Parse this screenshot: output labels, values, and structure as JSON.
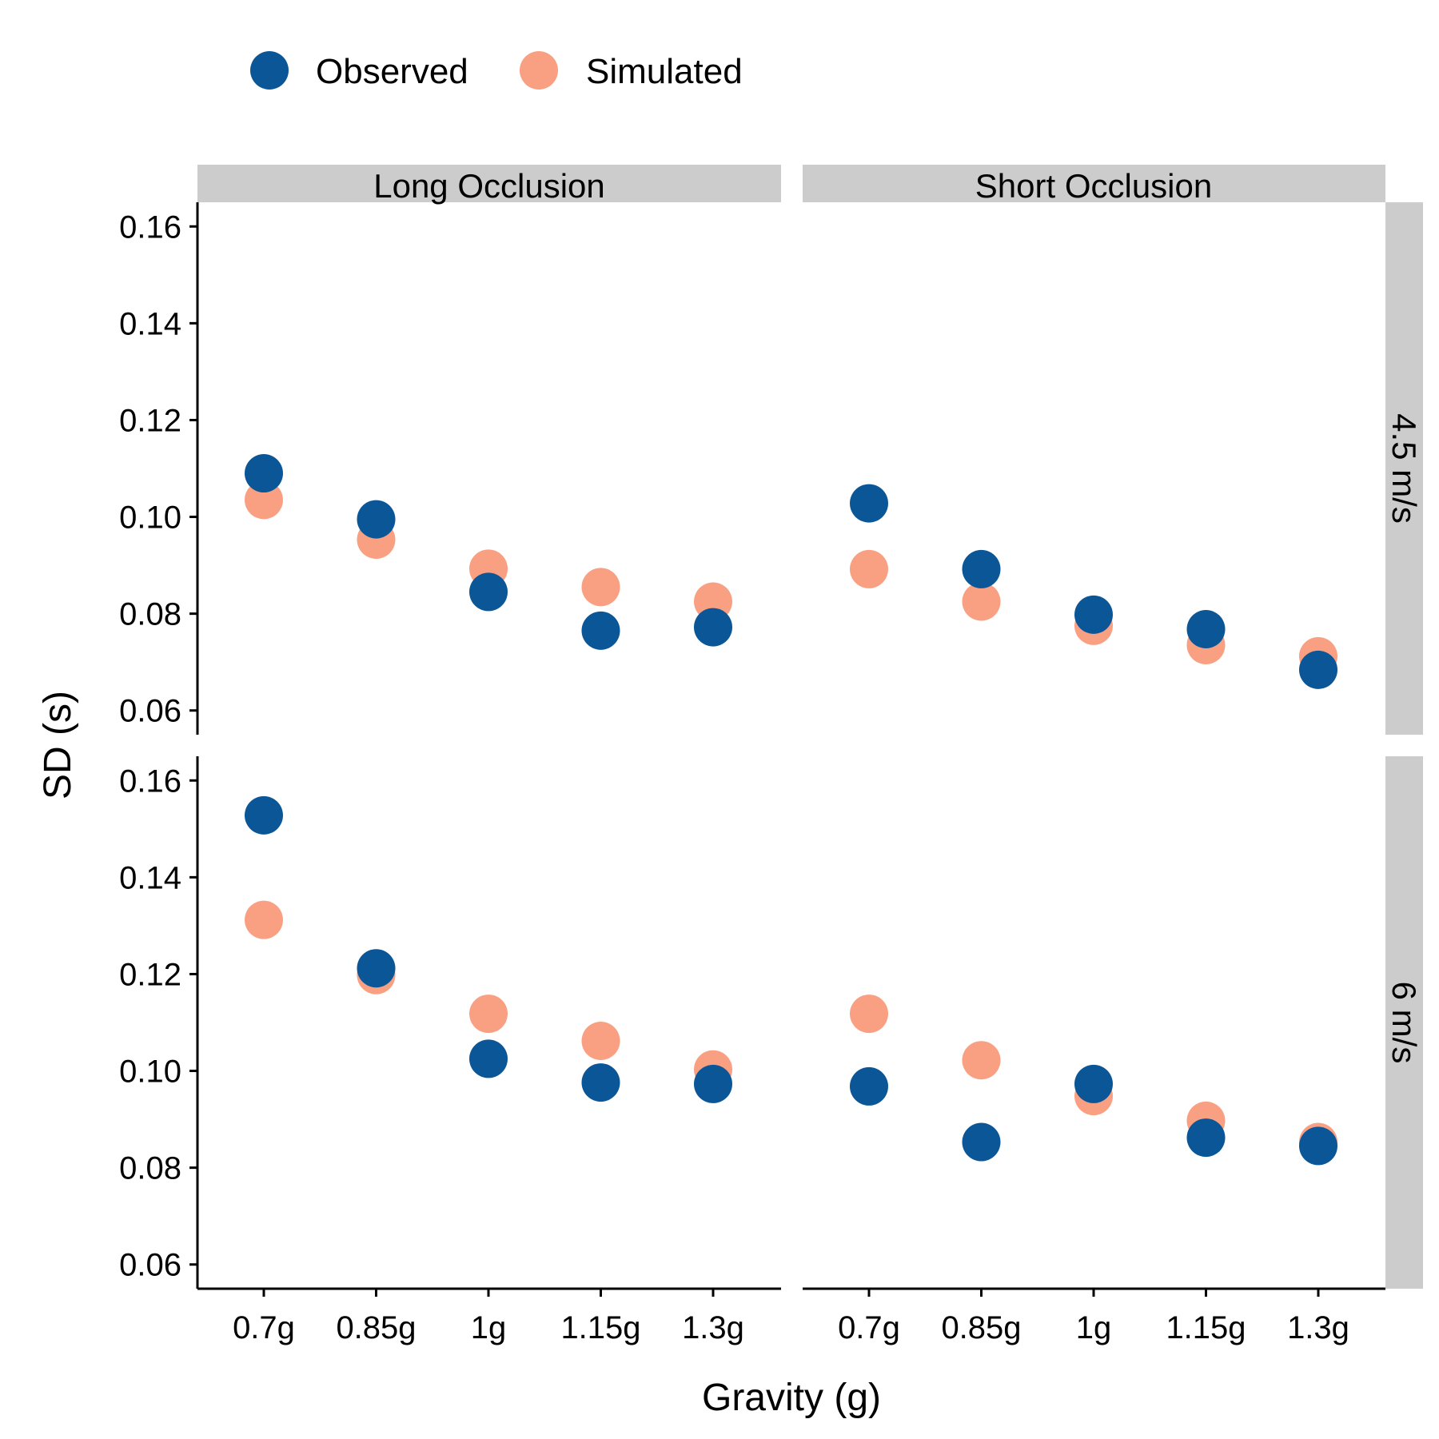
{
  "chart_data": {
    "type": "scatter",
    "xlabel": "Gravity (g)",
    "ylabel": "SD (s)",
    "categories": [
      "0.7g",
      "0.85g",
      "1g",
      "1.15g",
      "1.3g"
    ],
    "ylim": [
      0.055,
      0.165
    ],
    "yticks": [
      0.06,
      0.08,
      0.1,
      0.12,
      0.14,
      0.16
    ],
    "ytick_labels": [
      "0.06",
      "0.08",
      "0.10",
      "0.12",
      "0.14",
      "0.16"
    ],
    "legend": {
      "position": "top",
      "entries": [
        {
          "name": "Observed",
          "color": "#0b5697"
        },
        {
          "name": "Simulated",
          "color": "#f9a083"
        }
      ]
    },
    "facet_columns": [
      "Long Occlusion",
      "Short Occlusion"
    ],
    "facet_rows": [
      "4.5 m/s",
      "6 m/s"
    ],
    "panels": [
      {
        "column": "Long Occlusion",
        "row": "4.5 m/s",
        "series": [
          {
            "name": "Observed",
            "values": [
              0.109,
              0.0995,
              0.0845,
              0.0765,
              0.0772
            ]
          },
          {
            "name": "Simulated",
            "values": [
              0.1035,
              0.0953,
              0.0893,
              0.0855,
              0.0825
            ]
          }
        ]
      },
      {
        "column": "Short Occlusion",
        "row": "4.5 m/s",
        "series": [
          {
            "name": "Observed",
            "values": [
              0.1028,
              0.0892,
              0.0798,
              0.0768,
              0.0684
            ]
          },
          {
            "name": "Simulated",
            "values": [
              0.0892,
              0.0825,
              0.0775,
              0.0735,
              0.0712
            ]
          }
        ]
      },
      {
        "column": "Long Occlusion",
        "row": "6 m/s",
        "series": [
          {
            "name": "Observed",
            "values": [
              0.1528,
              0.1212,
              0.1025,
              0.0976,
              0.0973
            ]
          },
          {
            "name": "Simulated",
            "values": [
              0.1312,
              0.1198,
              0.1118,
              0.1062,
              0.1003
            ]
          }
        ]
      },
      {
        "column": "Short Occlusion",
        "row": "6 m/s",
        "series": [
          {
            "name": "Observed",
            "values": [
              0.0968,
              0.0853,
              0.0973,
              0.0862,
              0.0845
            ]
          },
          {
            "name": "Simulated",
            "values": [
              0.1118,
              0.1022,
              0.0948,
              0.0897,
              0.0853
            ]
          }
        ]
      }
    ],
    "grid": false
  }
}
